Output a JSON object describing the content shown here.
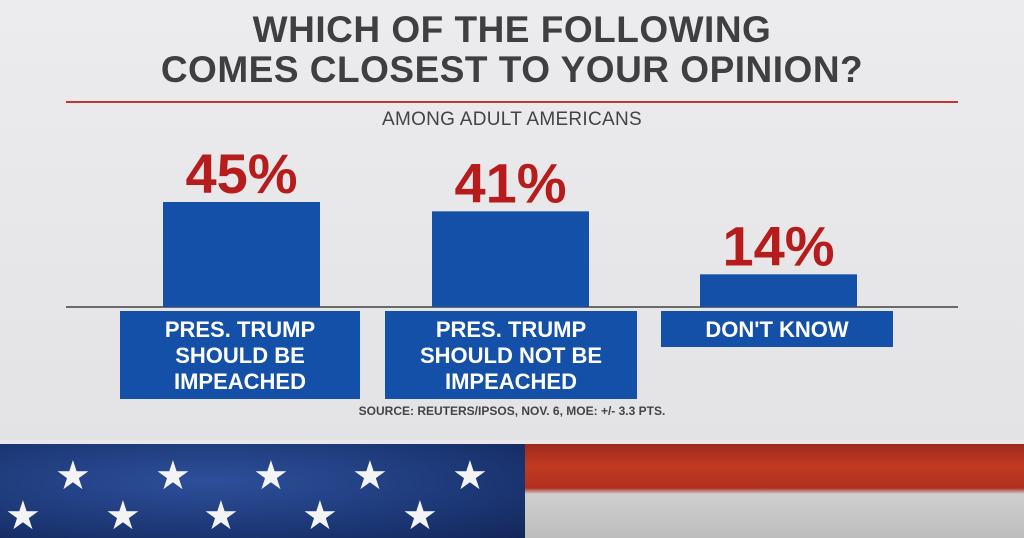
{
  "header": {
    "title_line1": "WHICH OF THE FOLLOWING",
    "title_line2": "COMES CLOSEST TO YOUR OPINION?",
    "subtitle": "AMONG ADULT AMERICANS"
  },
  "source": "SOURCE: REUTERS/IPSOS, NOV. 6, MOE: +/- 3.3 PTS.",
  "colors": {
    "bar": "#1450a8",
    "percent": "#b71c1c",
    "title_rule": "#c0392b"
  },
  "chart_data": {
    "type": "bar",
    "title": "WHICH OF THE FOLLOWING COMES CLOSEST TO YOUR OPINION?",
    "subtitle": "AMONG ADULT AMERICANS",
    "categories": [
      [
        "PRES. TRUMP",
        "SHOULD BE",
        "IMPEACHED"
      ],
      [
        "PRES. TRUMP",
        "SHOULD NOT BE",
        "IMPEACHED"
      ],
      [
        "DON'T KNOW"
      ]
    ],
    "values": [
      45,
      41,
      14
    ],
    "value_labels": [
      "45%",
      "41%",
      "14%"
    ],
    "ylim": [
      0,
      45
    ],
    "grid": false,
    "legend": "none"
  },
  "flag": {
    "icon": "us-flag-banner",
    "star_icon": "star-icon"
  }
}
